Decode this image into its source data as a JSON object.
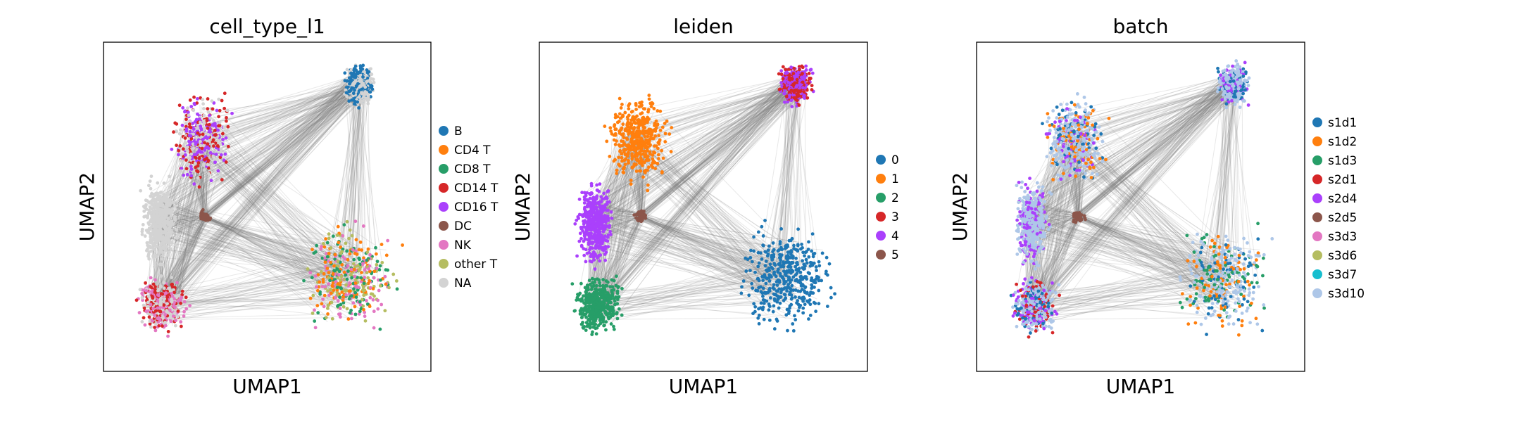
{
  "colors": {
    "edge": "#808080",
    "na": "#d3d3d3",
    "frame": "#000000"
  },
  "chart_data": [
    {
      "type": "scatter",
      "title": "cell_type_l1",
      "xlabel": "UMAP1",
      "ylabel": "UMAP2",
      "legend": [
        {
          "label": "B",
          "color": "#1f77b4"
        },
        {
          "label": "CD4 T",
          "color": "#ff7f0e"
        },
        {
          "label": "CD8 T",
          "color": "#279e68"
        },
        {
          "label": "CD14 T",
          "color": "#d62728"
        },
        {
          "label": "CD16 T",
          "color": "#aa40fc"
        },
        {
          "label": "DC",
          "color": "#8c564b"
        },
        {
          "label": "NK",
          "color": "#e377c2"
        },
        {
          "label": "other T",
          "color": "#b5bd61"
        },
        {
          "label": "NA",
          "color": "#d3d3d3"
        }
      ]
    },
    {
      "type": "scatter",
      "title": "leiden",
      "xlabel": "UMAP1",
      "ylabel": "UMAP2",
      "legend": [
        {
          "label": "0",
          "color": "#1f77b4"
        },
        {
          "label": "1",
          "color": "#ff7f0e"
        },
        {
          "label": "2",
          "color": "#279e68"
        },
        {
          "label": "3",
          "color": "#d62728"
        },
        {
          "label": "4",
          "color": "#aa40fc"
        },
        {
          "label": "5",
          "color": "#8c564b"
        }
      ]
    },
    {
      "type": "scatter",
      "title": "batch",
      "xlabel": "UMAP1",
      "ylabel": "UMAP2",
      "legend": [
        {
          "label": "s1d1",
          "color": "#1f77b4"
        },
        {
          "label": "s1d2",
          "color": "#ff7f0e"
        },
        {
          "label": "s1d3",
          "color": "#279e68"
        },
        {
          "label": "s2d1",
          "color": "#d62728"
        },
        {
          "label": "s2d4",
          "color": "#aa40fc"
        },
        {
          "label": "s2d5",
          "color": "#8c564b"
        },
        {
          "label": "s3d3",
          "color": "#e377c2"
        },
        {
          "label": "s3d6",
          "color": "#b5bd61"
        },
        {
          "label": "s3d7",
          "color": "#17becf"
        },
        {
          "label": "s3d10",
          "color": "#aec7e8"
        }
      ]
    }
  ]
}
